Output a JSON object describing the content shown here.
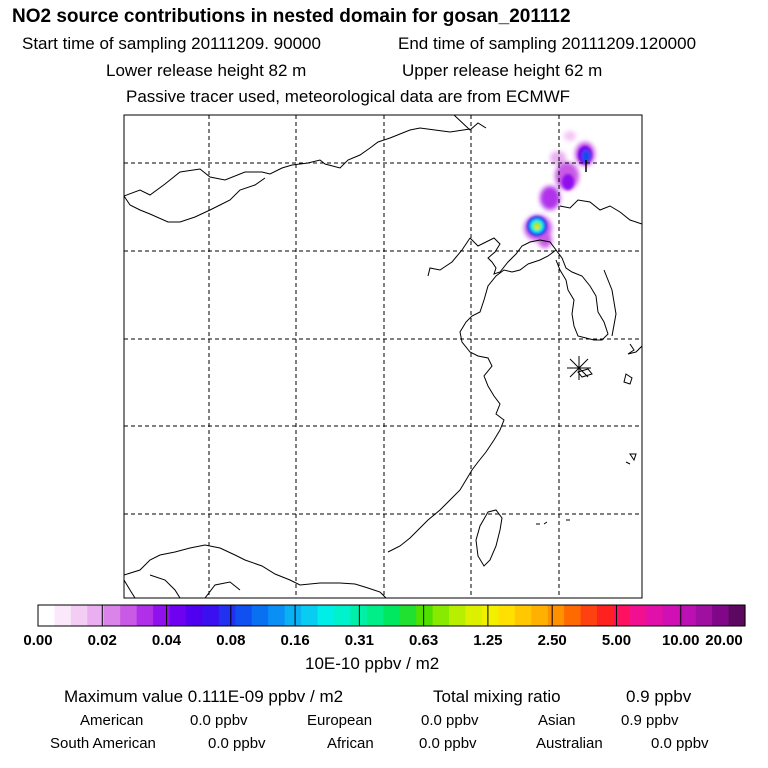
{
  "header": {
    "title": "NO2 source contributions in nested domain for gosan_201112",
    "start_label": "Start time of sampling 20111209. 90000",
    "end_label": "End time of sampling 20111209.120000",
    "lower_label": "Lower release height   82 m",
    "upper_label": "Upper release height   62 m",
    "tracer_note": "Passive tracer used, meteorological data are from ECMWF"
  },
  "chart_data": {
    "type": "heatmap",
    "title": "NO2 source contributions in nested domain for gosan_201112",
    "colorbar": {
      "units": "10E-10 ppbv / m2",
      "tick_labels": [
        "0.00",
        "0.02",
        "0.04",
        "0.08",
        "0.16",
        "0.31",
        "0.63",
        "1.25",
        "2.50",
        "5.00",
        "10.00",
        "20.00"
      ],
      "levels": [
        0.0,
        0.02,
        0.04,
        0.08,
        0.16,
        0.31,
        0.63,
        1.25,
        2.5,
        5.0,
        10.0,
        20.0
      ],
      "colors": [
        "#ffffff",
        "#fbe8fb",
        "#f3cdf4",
        "#e9aff0",
        "#da84ea",
        "#c85ae6",
        "#b030ea",
        "#9010ee",
        "#7000f0",
        "#5000ee",
        "#3a10f0",
        "#2230f0",
        "#1050f0",
        "#0a70f2",
        "#0a90f4",
        "#0ab0f4",
        "#08ccf2",
        "#00eee8",
        "#00f2cc",
        "#00f0aa",
        "#00ee88",
        "#00e860",
        "#20e030",
        "#50e000",
        "#88ea00",
        "#b8ee00",
        "#dcf000",
        "#f0f000",
        "#ffe000",
        "#ffc800",
        "#ffb000",
        "#ff9000",
        "#ff6a00",
        "#ff4010",
        "#ff2020",
        "#ff1060",
        "#f01090",
        "#e010a8",
        "#d010b4",
        "#bc10b4",
        "#a010a0",
        "#800888",
        "#5c0860"
      ]
    },
    "receptor": "gosan (asterisk marker)",
    "grid": true
  },
  "summary": {
    "max_label": "Maximum value  0.111E-09 ppbv / m2",
    "total_label": "Total mixing ratio",
    "total_value": "0.9 ppbv"
  },
  "regions": [
    {
      "name": "American",
      "value": "0.0 ppbv"
    },
    {
      "name": "European",
      "value": "0.0 ppbv"
    },
    {
      "name": "Asian",
      "value": "0.9 ppbv"
    },
    {
      "name": "South American",
      "value": "0.0 ppbv"
    },
    {
      "name": "African",
      "value": "0.0 ppbv"
    },
    {
      "name": "Australian",
      "value": "0.0 ppbv"
    }
  ]
}
